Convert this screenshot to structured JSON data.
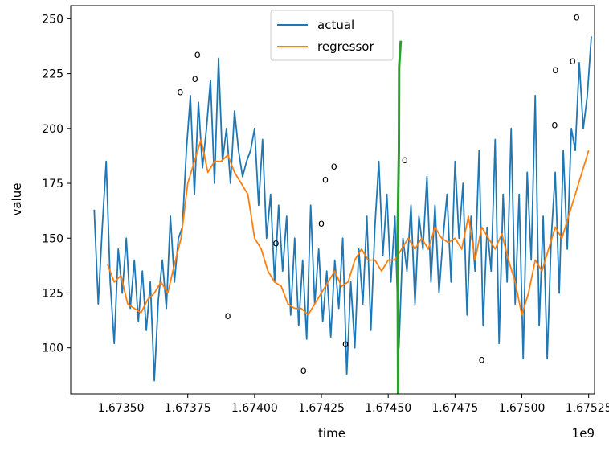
{
  "chart_data": {
    "type": "line",
    "title": "",
    "xlabel": "time",
    "ylabel": "value",
    "x_offset_label": "1e9",
    "xlim": [
      1673312000,
      1675272000
    ],
    "ylim": [
      79,
      256
    ],
    "x_ticks": [
      1673500000,
      1673750000,
      1674000000,
      1674250000,
      1674500000,
      1674750000,
      1675000000,
      1675250000
    ],
    "x_tick_labels": [
      "1.67350",
      "1.67375",
      "1.67400",
      "1.67425",
      "1.67450",
      "1.67475",
      "1.67500",
      "1.67525"
    ],
    "y_ticks": [
      100,
      125,
      150,
      175,
      200,
      225,
      250
    ],
    "y_tick_labels": [
      "100",
      "125",
      "150",
      "175",
      "200",
      "225",
      "250"
    ],
    "grid": false,
    "legend_position": "top-center",
    "series": [
      {
        "name": "actual",
        "color": "#1f77b4",
        "x": [
          1673400000,
          1673415000,
          1673430000,
          1673445000,
          1673460000,
          1673475000,
          1673490000,
          1673505000,
          1673520000,
          1673535000,
          1673550000,
          1673565000,
          1673580000,
          1673595000,
          1673610000,
          1673625000,
          1673640000,
          1673655000,
          1673670000,
          1673685000,
          1673700000,
          1673715000,
          1673730000,
          1673745000,
          1673760000,
          1673775000,
          1673790000,
          1673805000,
          1673820000,
          1673835000,
          1673850000,
          1673865000,
          1673880000,
          1673895000,
          1673910000,
          1673925000,
          1673940000,
          1673955000,
          1673970000,
          1673985000,
          1674000000,
          1674015000,
          1674030000,
          1674045000,
          1674060000,
          1674075000,
          1674090000,
          1674105000,
          1674120000,
          1674135000,
          1674150000,
          1674165000,
          1674180000,
          1674195000,
          1674210000,
          1674225000,
          1674240000,
          1674255000,
          1674270000,
          1674285000,
          1674300000,
          1674315000,
          1674330000,
          1674345000,
          1674360000,
          1674375000,
          1674390000,
          1674405000,
          1674420000,
          1674435000,
          1674450000,
          1674465000,
          1674480000,
          1674495000,
          1674510000,
          1674525000,
          1674540000,
          1674555000,
          1674570000,
          1674585000,
          1674600000,
          1674615000,
          1674630000,
          1674645000,
          1674660000,
          1674675000,
          1674690000,
          1674705000,
          1674720000,
          1674735000,
          1674750000,
          1674765000,
          1674780000,
          1674795000,
          1674810000,
          1674825000,
          1674840000,
          1674855000,
          1674870000,
          1674885000,
          1674900000,
          1674915000,
          1674930000,
          1674945000,
          1674960000,
          1674975000,
          1674990000,
          1675005000,
          1675020000,
          1675035000,
          1675050000,
          1675065000,
          1675080000,
          1675095000,
          1675110000,
          1675125000,
          1675140000,
          1675155000,
          1675170000,
          1675185000,
          1675200000,
          1675215000,
          1675230000,
          1675245000,
          1675260000
        ],
        "y": [
          163,
          120,
          155,
          185,
          130,
          102,
          145,
          125,
          150,
          118,
          140,
          112,
          135,
          108,
          130,
          85,
          122,
          140,
          118,
          160,
          130,
          150,
          155,
          190,
          215,
          170,
          212,
          182,
          200,
          222,
          175,
          232,
          185,
          200,
          175,
          208,
          190,
          178,
          185,
          190,
          200,
          165,
          195,
          150,
          170,
          130,
          165,
          135,
          160,
          115,
          150,
          110,
          140,
          104,
          165,
          120,
          145,
          112,
          135,
          105,
          140,
          118,
          150,
          88,
          130,
          100,
          145,
          120,
          160,
          108,
          155,
          185,
          142,
          170,
          130,
          160,
          100,
          150,
          135,
          165,
          120,
          160,
          145,
          178,
          130,
          165,
          125,
          150,
          170,
          130,
          185,
          150,
          175,
          115,
          160,
          135,
          190,
          110,
          155,
          135,
          195,
          102,
          170,
          130,
          200,
          120,
          170,
          95,
          180,
          140,
          215,
          110,
          160,
          95,
          150,
          180,
          125,
          190,
          145,
          200,
          190,
          230,
          200,
          215,
          242
        ]
      },
      {
        "name": "regressor",
        "color": "#ff7f0e",
        "x": [
          1673450000,
          1673475000,
          1673500000,
          1673525000,
          1673550000,
          1673575000,
          1673600000,
          1673625000,
          1673650000,
          1673675000,
          1673700000,
          1673725000,
          1673750000,
          1673775000,
          1673800000,
          1673825000,
          1673850000,
          1673875000,
          1673900000,
          1673925000,
          1673950000,
          1673975000,
          1674000000,
          1674025000,
          1674050000,
          1674075000,
          1674100000,
          1674125000,
          1674150000,
          1674175000,
          1674200000,
          1674225000,
          1674250000,
          1674275000,
          1674300000,
          1674325000,
          1674350000,
          1674375000,
          1674400000,
          1674425000,
          1674450000,
          1674475000,
          1674500000,
          1674525000,
          1674550000,
          1674575000,
          1674600000,
          1674625000,
          1674650000,
          1674675000,
          1674700000,
          1674725000,
          1674750000,
          1674775000,
          1674800000,
          1674825000,
          1674850000,
          1674875000,
          1674900000,
          1674925000,
          1674950000,
          1674975000,
          1675000000,
          1675025000,
          1675050000,
          1675075000,
          1675100000,
          1675125000,
          1675150000,
          1675175000,
          1675200000,
          1675225000,
          1675250000
        ],
        "y": [
          138,
          130,
          133,
          120,
          118,
          116,
          122,
          125,
          130,
          125,
          138,
          150,
          175,
          185,
          195,
          180,
          185,
          185,
          188,
          180,
          175,
          170,
          150,
          145,
          135,
          130,
          128,
          120,
          118,
          118,
          115,
          120,
          125,
          130,
          135,
          128,
          130,
          140,
          145,
          140,
          140,
          135,
          140,
          140,
          145,
          150,
          145,
          150,
          145,
          155,
          150,
          148,
          150,
          145,
          160,
          140,
          155,
          150,
          145,
          152,
          140,
          130,
          115,
          125,
          140,
          135,
          145,
          155,
          150,
          160,
          170,
          180,
          190
        ]
      }
    ],
    "markers": {
      "symbol": "o",
      "points": [
        [
          1673722000,
          217
        ],
        [
          1673777000,
          223
        ],
        [
          1673786000,
          234
        ],
        [
          1673900000,
          115
        ],
        [
          1674080000,
          148
        ],
        [
          1674183000,
          90
        ],
        [
          1674250000,
          157
        ],
        [
          1674265000,
          177
        ],
        [
          1674297000,
          183
        ],
        [
          1674340000,
          102
        ],
        [
          1674562000,
          186
        ],
        [
          1674850000,
          95
        ],
        [
          1675126000,
          227
        ],
        [
          1675123000,
          202
        ],
        [
          1675190000,
          231
        ],
        [
          1675205000,
          251
        ]
      ]
    },
    "vertical_line": {
      "color": "#2ca02c",
      "points": [
        [
          1674537000,
          79
        ],
        [
          1674535000,
          150
        ],
        [
          1674540000,
          190
        ],
        [
          1674541000,
          228
        ],
        [
          1674547000,
          240
        ]
      ]
    }
  }
}
